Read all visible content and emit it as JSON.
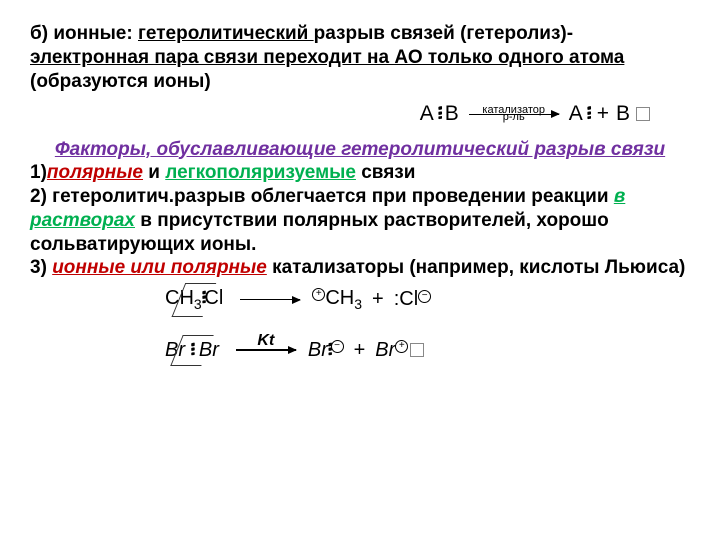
{
  "title": {
    "part1": "б) ",
    "bold1": "ионные: ",
    "und1": "гетеролитический ",
    "plain1": "разрыв связей (гетеролиз)- ",
    "und2": "электронная пара связи переходит на АО только одного атома ",
    "plain2": "(образуются ионы)"
  },
  "scheme1": {
    "left_A": "A",
    "dots": "፧",
    "left_B": "B",
    "over": "катализатор",
    "under": "р-ль",
    "right_A": "A",
    "right_B": "B"
  },
  "heading": "Факторы, обуславливающие гетеролитический разрыв связи",
  "f1": {
    "num": "1)",
    "red": "полярные",
    "mid": " и ",
    "green": "легкополяризуемые",
    "tail": " связи"
  },
  "f2": {
    "pre": "2) гетеролитич.разрыв облегчается при проведении реакции ",
    "green": "в растворах",
    "tail": " в присутствии полярных растворителей, хорошо сольватирующих ионы."
  },
  "f3": {
    "pre": "3) ",
    "red": "ионные или полярные",
    "tail": " катализаторы (например, кислоты Льюиса)"
  },
  "ex1": {
    "ch3": "CH",
    "sub3": "3",
    "cl": "Cl",
    "r_ch3": "CH",
    "r_sub3": "3",
    "r_cl": ":Cl",
    "minus": "−",
    "plus": "+"
  },
  "ex2": {
    "br1": "Br",
    "br2": "Br",
    "kt": "Kt",
    "r_br1": "Br",
    "r_br2": "Br",
    "minus": "−",
    "plus": "+",
    "plussign": "+"
  },
  "colors": {
    "purple": "#7030a0",
    "red": "#c00000",
    "green": "#00b050"
  }
}
